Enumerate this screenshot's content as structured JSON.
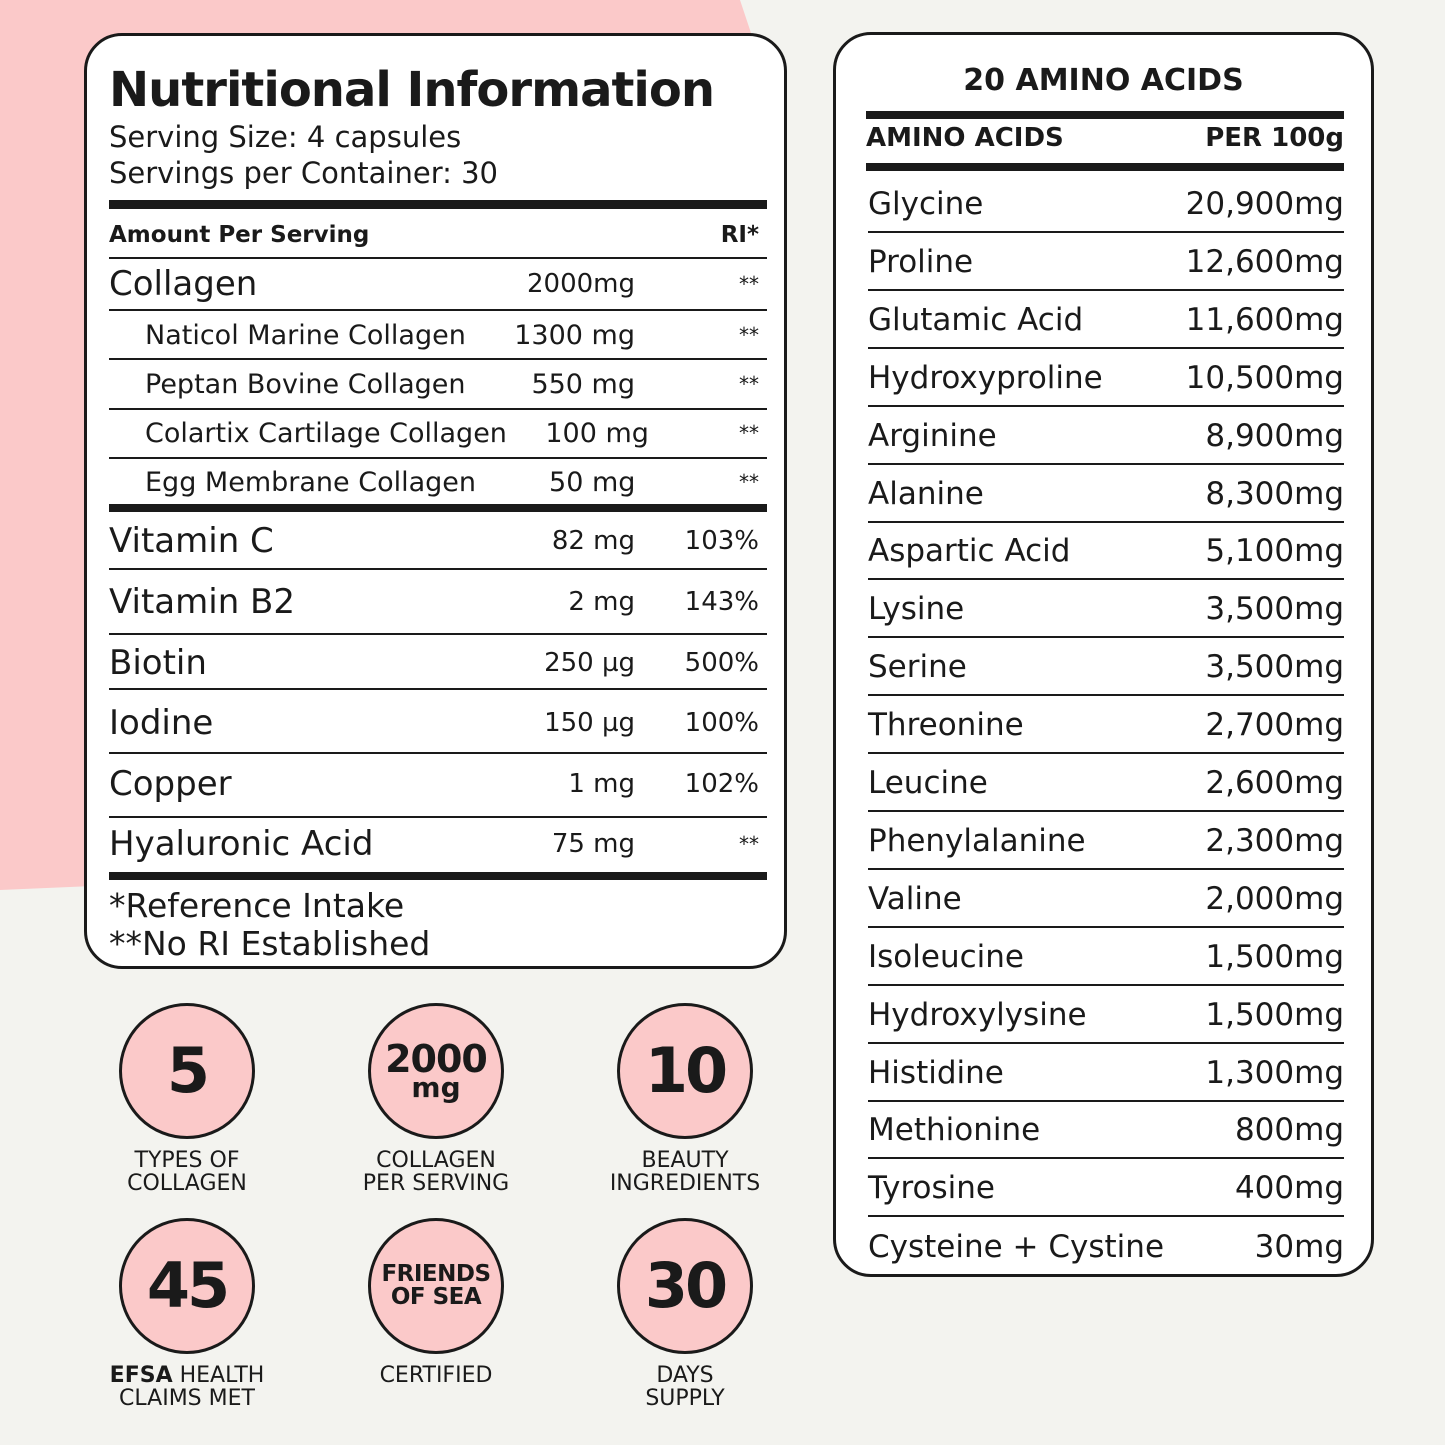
{
  "nutrition": {
    "title": "Nutritional Information",
    "serving_size": "Serving Size: 4 capsules",
    "servings_per_container": "Servings per Container: 30",
    "header_amount": "Amount Per Serving",
    "header_ri": "RI*",
    "rows": [
      {
        "name": "Collagen",
        "amount": "2000mg",
        "ri": "**"
      },
      {
        "name": "Naticol Marine Collagen",
        "amount": "1300 mg",
        "ri": "**"
      },
      {
        "name": "Peptan Bovine Collagen",
        "amount": "550 mg",
        "ri": "**"
      },
      {
        "name": "Colartix Cartilage Collagen",
        "amount": "100 mg",
        "ri": "**"
      },
      {
        "name": "Egg Membrane Collagen",
        "amount": "50 mg",
        "ri": "**"
      },
      {
        "name": "Vitamin C",
        "amount": "82 mg",
        "ri": "103%"
      },
      {
        "name": "Vitamin B2",
        "amount": "2 mg",
        "ri": "143%"
      },
      {
        "name": "Biotin",
        "amount": "250 µg",
        "ri": "500%"
      },
      {
        "name": "Iodine",
        "amount": "150 µg",
        "ri": "100%"
      },
      {
        "name": "Copper",
        "amount": "1 mg",
        "ri": "102%"
      },
      {
        "name": "Hyaluronic Acid",
        "amount": "75 mg",
        "ri": "**"
      }
    ],
    "footnote_1": "*Reference Intake",
    "footnote_2": "**No RI Established"
  },
  "amino": {
    "title": "20 AMINO ACIDS",
    "col_name": "AMINO ACIDS",
    "col_value": "PER 100g",
    "rows": [
      {
        "name": "Glycine",
        "value": "20,900mg"
      },
      {
        "name": "Proline",
        "value": "12,600mg"
      },
      {
        "name": "Glutamic Acid",
        "value": "11,600mg"
      },
      {
        "name": "Hydroxyproline",
        "value": "10,500mg"
      },
      {
        "name": "Arginine",
        "value": "8,900mg"
      },
      {
        "name": "Alanine",
        "value": "8,300mg"
      },
      {
        "name": "Aspartic Acid",
        "value": "5,100mg"
      },
      {
        "name": "Lysine",
        "value": "3,500mg"
      },
      {
        "name": "Serine",
        "value": "3,500mg"
      },
      {
        "name": "Threonine",
        "value": "2,700mg"
      },
      {
        "name": "Leucine",
        "value": "2,600mg"
      },
      {
        "name": "Phenylalanine",
        "value": "2,300mg"
      },
      {
        "name": "Valine",
        "value": "2,000mg"
      },
      {
        "name": "Isoleucine",
        "value": "1,500mg"
      },
      {
        "name": "Hydroxylysine",
        "value": "1,500mg"
      },
      {
        "name": "Histidine",
        "value": "1,300mg"
      },
      {
        "name": "Methionine",
        "value": "800mg"
      },
      {
        "name": "Tyrosine",
        "value": "400mg"
      },
      {
        "name": "Cysteine + Cystine",
        "value": "30mg"
      }
    ]
  },
  "badges": {
    "types": {
      "value": "5",
      "line1": "TYPES OF",
      "line2": "COLLAGEN"
    },
    "collagen": {
      "value": "2000",
      "unit": "mg",
      "line1": "COLLAGEN",
      "line2": "PER SERVING"
    },
    "beauty": {
      "value": "10",
      "line1": "BEAUTY",
      "line2": "INGREDIENTS"
    },
    "efsa": {
      "value": "45",
      "line1_bold": "EFSA",
      "line1_rest": " HEALTH",
      "line2": "CLAIMS MET"
    },
    "friends": {
      "line1": "FRIENDS",
      "line2": "OF SEA",
      "caption": "CERTIFIED"
    },
    "days": {
      "value": "30",
      "line1": "DAYS",
      "line2": "SUPPLY"
    }
  },
  "colors": {
    "background": "#f3f3ef",
    "accent_pink": "#fbc9c9",
    "ink": "#1a1a1a"
  }
}
